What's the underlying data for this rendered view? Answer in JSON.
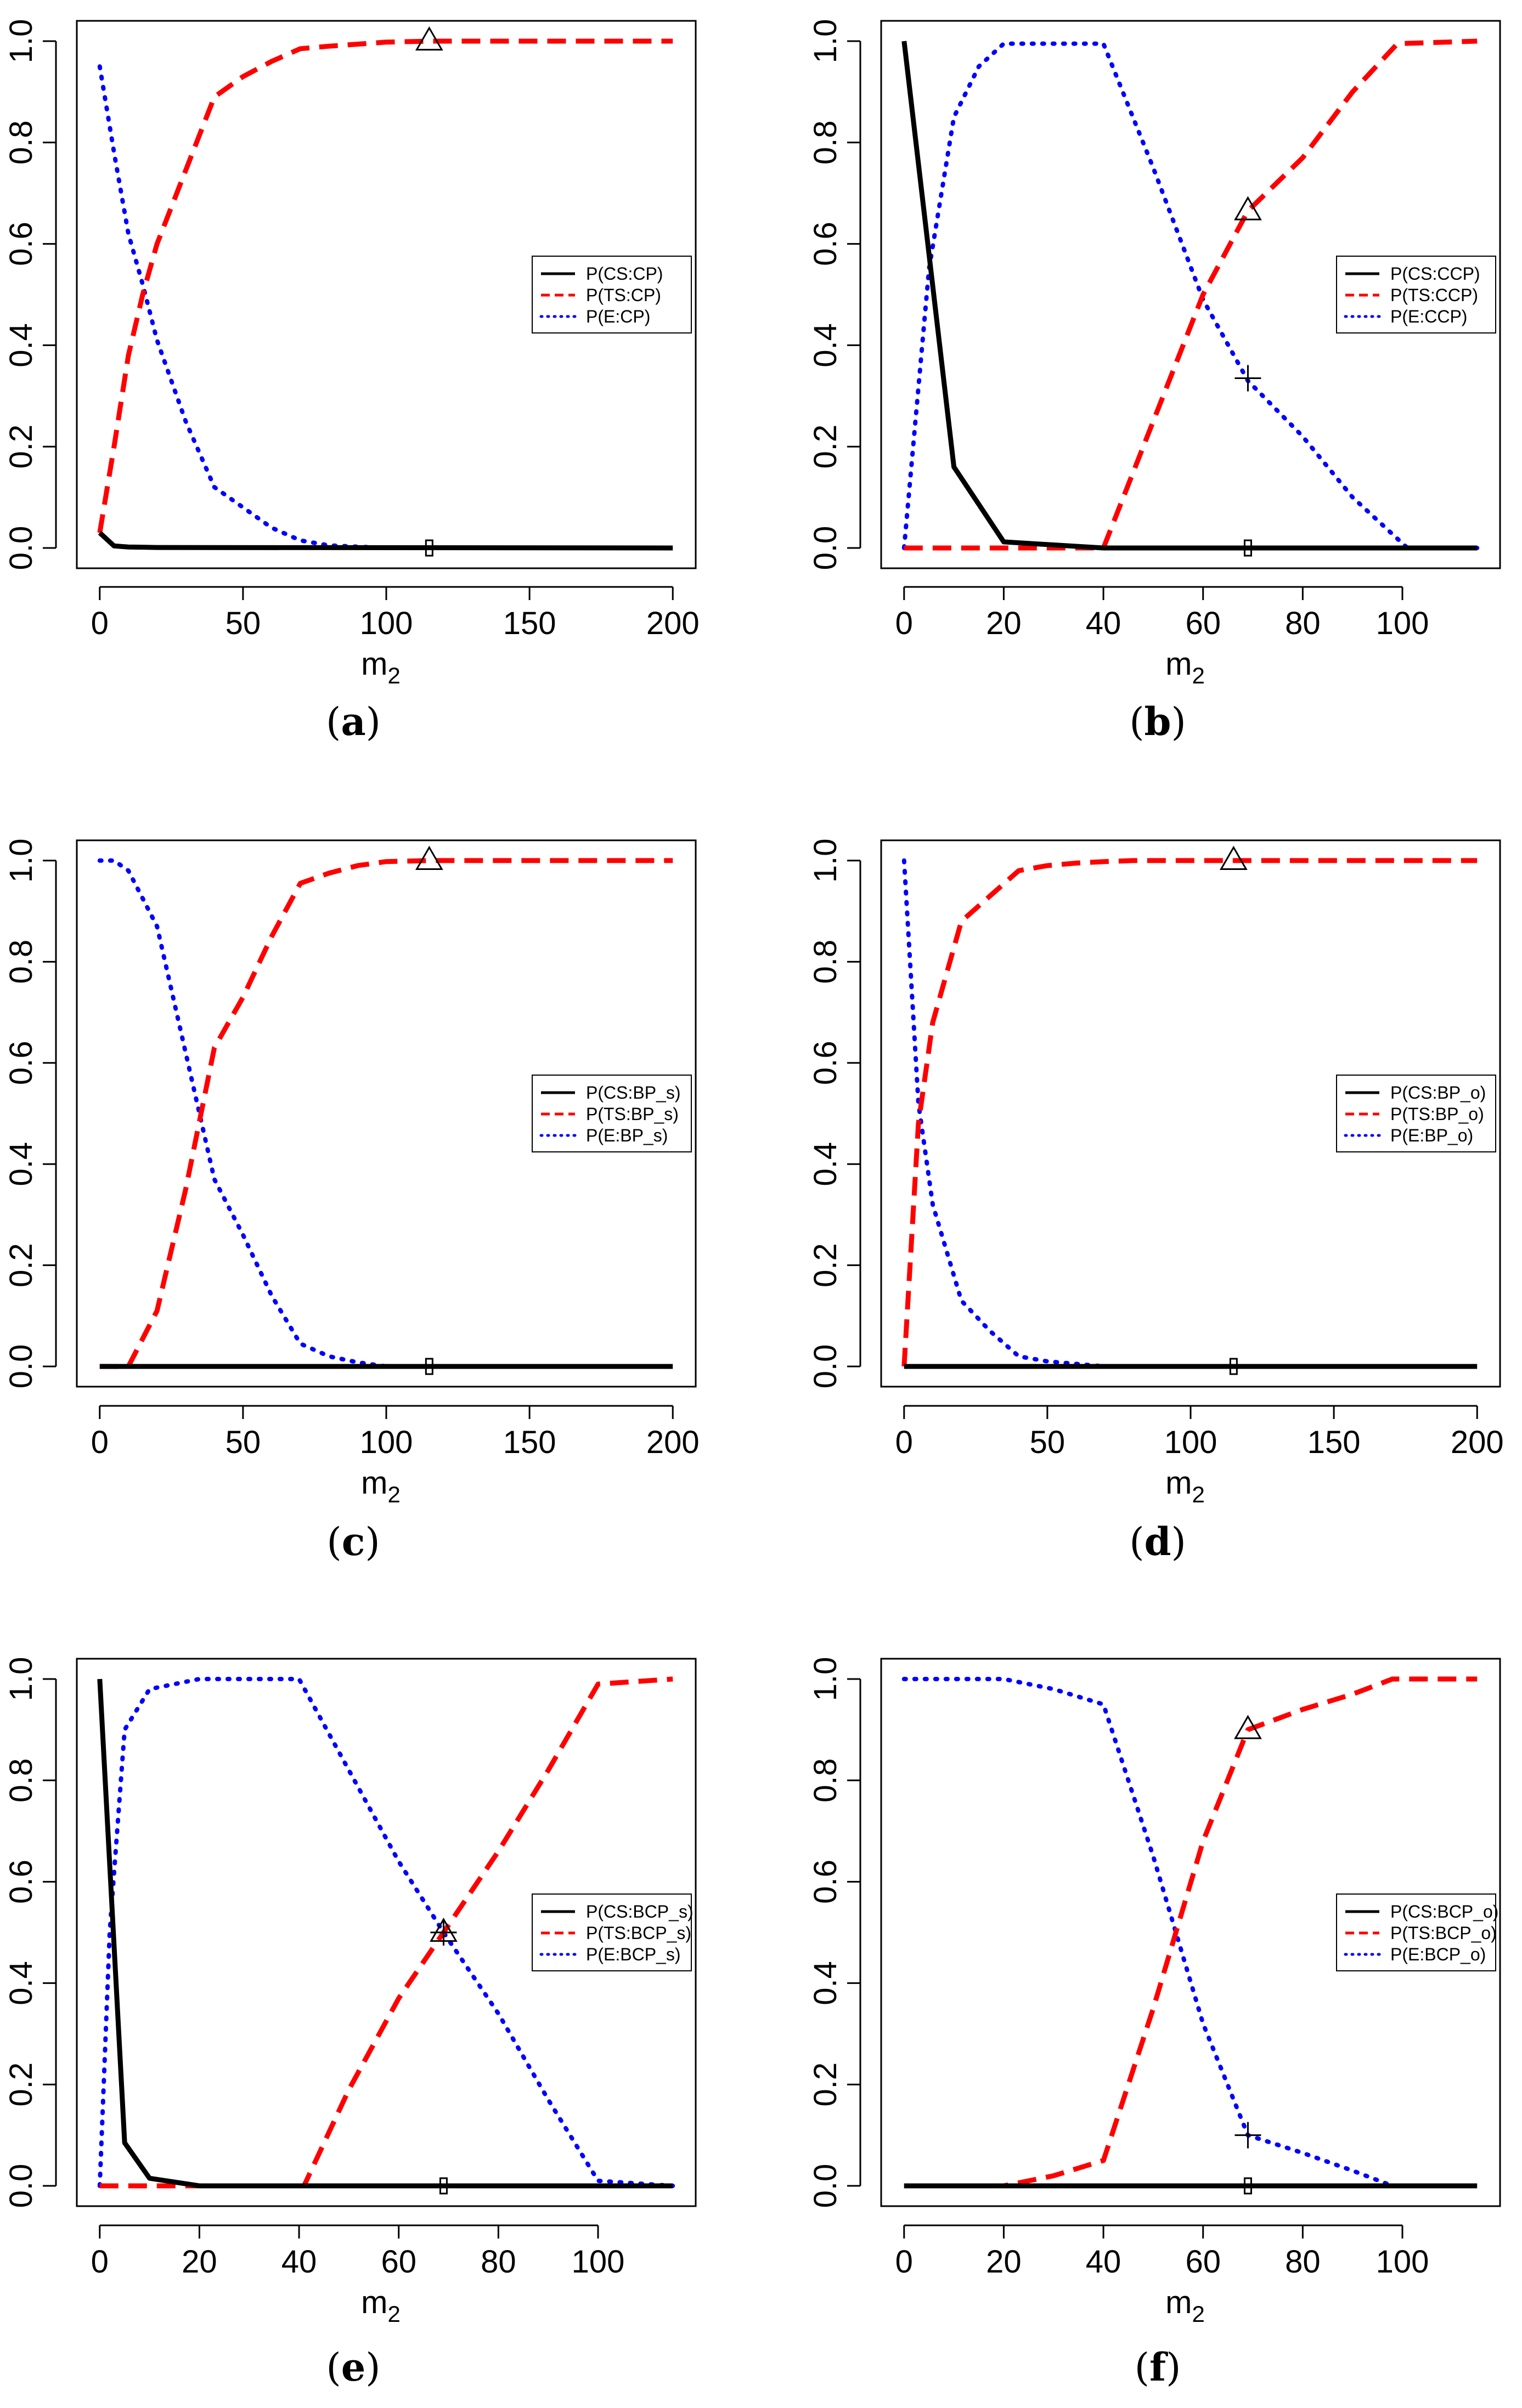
{
  "chart_data": [
    {
      "id": "a",
      "type": "line",
      "caption": "a",
      "xlabel_base": "m",
      "xlabel_sub": "2",
      "ylabel": "",
      "xlim": [
        0,
        200
      ],
      "ylim": [
        0,
        1
      ],
      "xticks": [
        "0",
        "50",
        "100",
        "150",
        "200"
      ],
      "yticks": [
        "0.0",
        "0.2",
        "0.4",
        "0.6",
        "0.8",
        "1.0"
      ],
      "legend_position": "center-right",
      "series": [
        {
          "name": "P(CS:CP)",
          "color": "#000000",
          "style": "solid",
          "x": [
            0,
            5,
            10,
            20,
            200
          ],
          "y": [
            0.03,
            0.004,
            0.002,
            0.001,
            0.0
          ]
        },
        {
          "name": "P(TS:CP)",
          "color": "#ff0000",
          "style": "dashed",
          "x": [
            0,
            5,
            10,
            15,
            20,
            40,
            50,
            60,
            70,
            80,
            100,
            115,
            200
          ],
          "y": [
            0.03,
            0.2,
            0.38,
            0.5,
            0.6,
            0.89,
            0.93,
            0.96,
            0.985,
            0.99,
            0.998,
            1.0,
            1.0
          ]
        },
        {
          "name": "P(E:CP)",
          "color": "#0000ff",
          "style": "dotted",
          "x": [
            0,
            5,
            10,
            15,
            20,
            30,
            40,
            50,
            60,
            70,
            80,
            100,
            200
          ],
          "y": [
            0.95,
            0.78,
            0.62,
            0.52,
            0.41,
            0.25,
            0.12,
            0.08,
            0.04,
            0.015,
            0.005,
            0.0,
            0.0
          ]
        }
      ],
      "markers": [
        {
          "type": "triangle",
          "x": 115,
          "y": 1.0
        },
        {
          "type": "square",
          "x": 115,
          "y": 0.0
        }
      ]
    },
    {
      "id": "b",
      "type": "line",
      "caption": "b",
      "xlabel_base": "m",
      "xlabel_sub": "2",
      "ylabel": "",
      "xlim": [
        0,
        115
      ],
      "ylim": [
        0,
        1
      ],
      "xticks": [
        "0",
        "20",
        "40",
        "60",
        "80",
        "100"
      ],
      "yticks": [
        "0.0",
        "0.2",
        "0.4",
        "0.6",
        "0.8",
        "1.0"
      ],
      "legend_position": "center-right",
      "series": [
        {
          "name": "P(CS:CCP)",
          "color": "#000000",
          "style": "solid",
          "x": [
            0,
            10,
            20,
            40,
            115
          ],
          "y": [
            1.0,
            0.16,
            0.012,
            0.0,
            0.0
          ]
        },
        {
          "name": "P(TS:CCP)",
          "color": "#ff0000",
          "style": "dashed",
          "x": [
            0,
            40,
            50,
            60,
            69,
            80,
            90,
            99,
            115
          ],
          "y": [
            0.0,
            0.0,
            0.25,
            0.5,
            0.665,
            0.77,
            0.9,
            0.995,
            1.0
          ]
        },
        {
          "name": "P(E:CCP)",
          "color": "#0000ff",
          "style": "dotted",
          "x": [
            0,
            5,
            10,
            15,
            20,
            40,
            50,
            60,
            69,
            80,
            90,
            101,
            115
          ],
          "y": [
            0.0,
            0.55,
            0.85,
            0.95,
            0.995,
            0.995,
            0.75,
            0.49,
            0.33,
            0.22,
            0.1,
            0.0,
            0.0
          ]
        }
      ],
      "markers": [
        {
          "type": "triangle",
          "x": 69,
          "y": 0.665
        },
        {
          "type": "plus",
          "x": 69,
          "y": 0.335
        },
        {
          "type": "square",
          "x": 69,
          "y": 0.0
        }
      ]
    },
    {
      "id": "c",
      "type": "line",
      "caption": "c",
      "xlabel_base": "m",
      "xlabel_sub": "2",
      "ylabel": "",
      "xlim": [
        0,
        200
      ],
      "ylim": [
        0,
        1
      ],
      "xticks": [
        "0",
        "50",
        "100",
        "150",
        "200"
      ],
      "yticks": [
        "0.0",
        "0.2",
        "0.4",
        "0.6",
        "0.8",
        "1.0"
      ],
      "legend_position": "center-right",
      "series": [
        {
          "name": "P(CS:BP_s)",
          "color": "#000000",
          "style": "solid",
          "x": [
            0,
            200
          ],
          "y": [
            0.0,
            0.0
          ]
        },
        {
          "name": "P(TS:BP_s)",
          "color": "#ff0000",
          "style": "dashed",
          "x": [
            0,
            10,
            20,
            30,
            40,
            50,
            60,
            70,
            80,
            90,
            100,
            115,
            200
          ],
          "y": [
            0.0,
            0.0,
            0.11,
            0.35,
            0.63,
            0.73,
            0.85,
            0.955,
            0.975,
            0.99,
            0.998,
            1.0,
            1.0
          ]
        },
        {
          "name": "P(E:BP_s)",
          "color": "#0000ff",
          "style": "dotted",
          "x": [
            0,
            5,
            10,
            20,
            30,
            40,
            50,
            60,
            70,
            80,
            90,
            100,
            200
          ],
          "y": [
            1.0,
            1.0,
            0.98,
            0.87,
            0.62,
            0.37,
            0.26,
            0.14,
            0.045,
            0.02,
            0.008,
            0.0,
            0.0
          ]
        }
      ],
      "markers": [
        {
          "type": "triangle",
          "x": 115,
          "y": 1.0
        },
        {
          "type": "square",
          "x": 115,
          "y": 0.0
        }
      ]
    },
    {
      "id": "d",
      "type": "line",
      "caption": "d",
      "xlabel_base": "m",
      "xlabel_sub": "2",
      "ylabel": "",
      "xlim": [
        0,
        200
      ],
      "ylim": [
        0,
        1
      ],
      "xticks": [
        "0",
        "50",
        "100",
        "150",
        "200"
      ],
      "yticks": [
        "0.0",
        "0.2",
        "0.4",
        "0.6",
        "0.8",
        "1.0"
      ],
      "legend_position": "center-right",
      "series": [
        {
          "name": "P(CS:BP_o)",
          "color": "#000000",
          "style": "solid",
          "x": [
            0,
            200
          ],
          "y": [
            0.0,
            0.0
          ]
        },
        {
          "name": "P(TS:BP_o)",
          "color": "#ff0000",
          "style": "dashed",
          "x": [
            0,
            5,
            10,
            20,
            30,
            40,
            50,
            60,
            70,
            80,
            115,
            200
          ],
          "y": [
            0.0,
            0.48,
            0.68,
            0.88,
            0.93,
            0.98,
            0.99,
            0.995,
            0.998,
            1.0,
            1.0,
            1.0
          ]
        },
        {
          "name": "P(E:BP_o)",
          "color": "#0000ff",
          "style": "dotted",
          "x": [
            0,
            5,
            10,
            20,
            30,
            40,
            50,
            60,
            70,
            200
          ],
          "y": [
            1.0,
            0.52,
            0.32,
            0.13,
            0.07,
            0.02,
            0.01,
            0.005,
            0.0,
            0.0
          ]
        }
      ],
      "markers": [
        {
          "type": "triangle",
          "x": 115,
          "y": 1.0
        },
        {
          "type": "square",
          "x": 115,
          "y": 0.0
        }
      ]
    },
    {
      "id": "e",
      "type": "line",
      "caption": "e",
      "xlabel_base": "m",
      "xlabel_sub": "2",
      "ylabel": "",
      "xlim": [
        0,
        115
      ],
      "ylim": [
        0,
        1
      ],
      "xticks": [
        "0",
        "20",
        "40",
        "60",
        "80",
        "100"
      ],
      "yticks": [
        "0.0",
        "0.2",
        "0.4",
        "0.6",
        "0.8",
        "1.0"
      ],
      "legend_position": "center-right",
      "series": [
        {
          "name": "P(CS:BCP_s)",
          "color": "#000000",
          "style": "solid",
          "x": [
            0,
            5,
            10,
            20,
            115
          ],
          "y": [
            1.0,
            0.085,
            0.015,
            0.0,
            0.0
          ]
        },
        {
          "name": "P(TS:BCP_s)",
          "color": "#ff0000",
          "style": "dashed",
          "x": [
            0,
            41,
            50,
            60,
            69,
            80,
            90,
            100,
            115
          ],
          "y": [
            0.0,
            0.0,
            0.19,
            0.37,
            0.5,
            0.66,
            0.82,
            0.99,
            1.0
          ]
        },
        {
          "name": "P(E:BCP_s)",
          "color": "#0000ff",
          "style": "dotted",
          "x": [
            0,
            2,
            5,
            10,
            20,
            40,
            50,
            60,
            69,
            80,
            90,
            100,
            115
          ],
          "y": [
            0.0,
            0.5,
            0.9,
            0.98,
            1.0,
            1.0,
            0.82,
            0.64,
            0.5,
            0.34,
            0.17,
            0.01,
            0.0
          ]
        }
      ],
      "markers": [
        {
          "type": "triangle",
          "x": 69,
          "y": 0.5
        },
        {
          "type": "plus",
          "x": 69,
          "y": 0.5
        },
        {
          "type": "square",
          "x": 69,
          "y": 0.0
        }
      ]
    },
    {
      "id": "f",
      "type": "line",
      "caption": "f",
      "xlabel_base": "m",
      "xlabel_sub": "2",
      "ylabel": "",
      "xlim": [
        0,
        115
      ],
      "ylim": [
        0,
        1
      ],
      "xticks": [
        "0",
        "20",
        "40",
        "60",
        "80",
        "100"
      ],
      "yticks": [
        "0.0",
        "0.2",
        "0.4",
        "0.6",
        "0.8",
        "1.0"
      ],
      "legend_position": "center-right",
      "series": [
        {
          "name": "P(CS:BCP_o)",
          "color": "#000000",
          "style": "solid",
          "x": [
            0,
            115
          ],
          "y": [
            0.0,
            0.0
          ]
        },
        {
          "name": "P(TS:BCP_o)",
          "color": "#ff0000",
          "style": "dashed",
          "x": [
            0,
            20,
            30,
            40,
            50,
            60,
            69,
            80,
            90,
            98,
            115
          ],
          "y": [
            0.0,
            0.0,
            0.02,
            0.05,
            0.35,
            0.68,
            0.9,
            0.94,
            0.97,
            1.0,
            1.0
          ]
        },
        {
          "name": "P(E:BCP_o)",
          "color": "#0000ff",
          "style": "dotted",
          "x": [
            0,
            10,
            20,
            30,
            40,
            50,
            60,
            69,
            80,
            90,
            98,
            115
          ],
          "y": [
            1.0,
            1.0,
            1.0,
            0.98,
            0.95,
            0.65,
            0.32,
            0.1,
            0.065,
            0.03,
            0.0,
            0.0
          ]
        }
      ],
      "markers": [
        {
          "type": "triangle",
          "x": 69,
          "y": 0.9
        },
        {
          "type": "plus",
          "x": 69,
          "y": 0.1
        },
        {
          "type": "square",
          "x": 69,
          "y": 0.0
        }
      ]
    }
  ]
}
